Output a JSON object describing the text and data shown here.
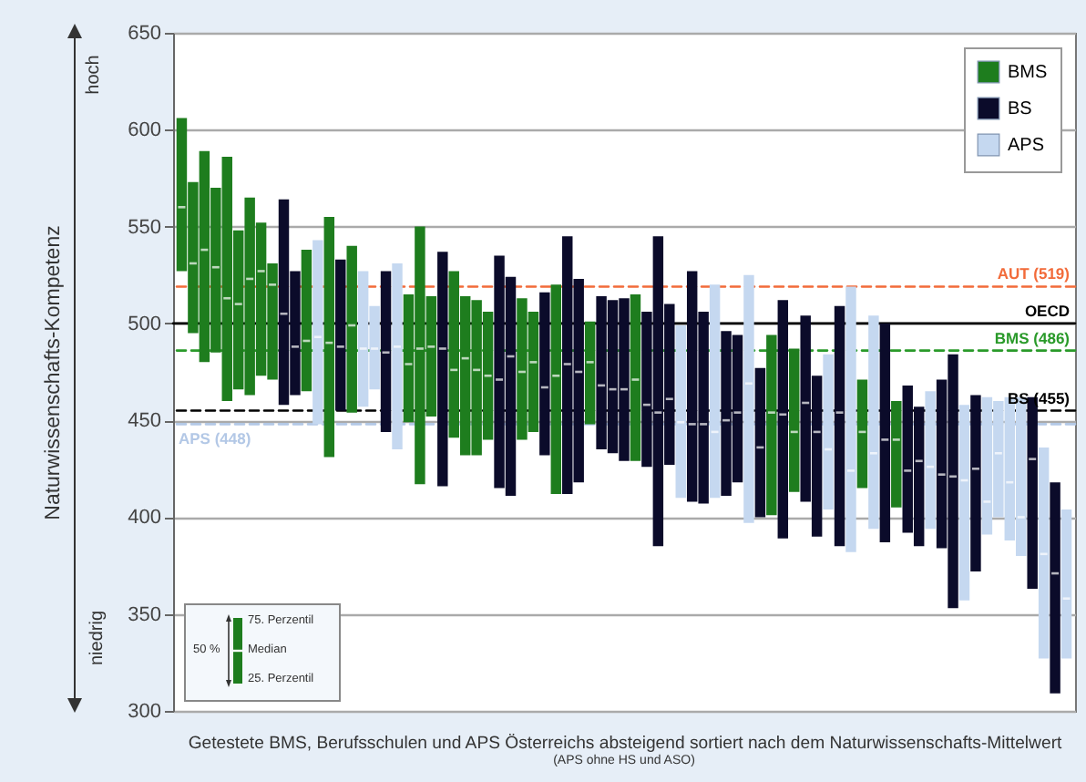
{
  "chart_data": {
    "type": "bar",
    "xlabel": "Getestete BMS, Berufsschulen und APS Österreichs absteigend sortiert nach dem Naturwissenschafts-Mittelwert",
    "ylabel": "Naturwissenschafts-Kompetenz",
    "annotations": [
      "hoch",
      "niedrig",
      "(APS ohne HS und ASO)",
      "75. Perzentil",
      "Median",
      "25. Perzentil",
      "50 %"
    ],
    "categories": [
      null,
      null,
      null,
      null,
      null,
      null,
      null,
      null,
      null,
      null,
      null,
      null,
      null,
      null,
      null,
      null,
      null,
      null,
      null,
      null,
      null,
      null,
      null,
      null,
      null,
      null,
      null,
      null,
      null,
      null,
      null,
      null,
      null,
      null,
      null,
      null,
      null,
      null,
      null,
      null,
      null,
      null,
      null,
      null,
      null,
      null,
      null,
      null,
      null,
      null,
      null,
      null,
      null,
      null,
      null,
      null,
      null,
      null,
      null,
      null,
      null,
      null,
      null,
      null,
      null,
      null,
      null,
      null,
      null,
      null,
      null,
      null,
      null,
      null,
      null,
      null,
      null,
      null,
      null
    ],
    "series": [
      {
        "name": "BMS",
        "color": "#1e7d1e",
        "values": [
          79,
          78,
          109,
          85,
          126,
          82,
          102,
          79,
          60,
          null,
          null,
          73,
          null,
          124,
          null,
          86,
          null,
          null,
          null,
          null,
          66,
          133,
          62,
          null,
          86,
          82,
          80,
          66,
          null,
          null,
          73,
          62,
          null,
          108,
          null,
          null,
          53,
          null,
          null,
          null,
          86,
          null,
          null,
          null,
          null,
          null,
          null,
          null,
          null,
          null,
          null,
          null,
          93,
          null,
          74,
          null,
          null,
          null,
          null,
          null,
          56,
          null,
          null,
          55,
          null,
          null,
          null,
          null,
          null,
          null,
          null,
          null,
          null,
          null,
          null,
          null,
          null,
          null,
          null
        ],
        "base": [
          527,
          495,
          480,
          485,
          460,
          466,
          463,
          473,
          471,
          null,
          null,
          465,
          null,
          431,
          null,
          454,
          null,
          null,
          null,
          null,
          449,
          417,
          452,
          null,
          441,
          432,
          432,
          440,
          null,
          null,
          440,
          444,
          null,
          412,
          null,
          null,
          448,
          null,
          null,
          null,
          429,
          null,
          null,
          null,
          null,
          null,
          null,
          null,
          null,
          null,
          null,
          null,
          401,
          null,
          413,
          null,
          null,
          null,
          null,
          null,
          415,
          null,
          null,
          405,
          null,
          null,
          null,
          null,
          null,
          null,
          null,
          null,
          null,
          null,
          null,
          null,
          null,
          null,
          null
        ]
      },
      {
        "name": "BS",
        "color": "#0b0b2a",
        "values": [
          null,
          null,
          null,
          null,
          null,
          null,
          null,
          null,
          null,
          106,
          64,
          null,
          null,
          null,
          78,
          null,
          null,
          null,
          83,
          null,
          null,
          null,
          null,
          121,
          null,
          null,
          null,
          null,
          120,
          113,
          null,
          null,
          84,
          null,
          133,
          105,
          null,
          79,
          79,
          84,
          null,
          80,
          160,
          83,
          null,
          119,
          99,
          null,
          85,
          76,
          null,
          77,
          null,
          123,
          null,
          96,
          83,
          null,
          124,
          null,
          null,
          null,
          113,
          null,
          76,
          72,
          null,
          87,
          131,
          null,
          91,
          null,
          null,
          null,
          null,
          99,
          null,
          109,
          null
        ],
        "base": [
          null,
          null,
          null,
          null,
          null,
          null,
          null,
          null,
          null,
          458,
          463,
          null,
          null,
          null,
          455,
          null,
          null,
          null,
          444,
          null,
          null,
          null,
          null,
          416,
          null,
          null,
          null,
          null,
          415,
          411,
          null,
          null,
          432,
          null,
          412,
          418,
          null,
          435,
          433,
          429,
          null,
          426,
          385,
          427,
          null,
          408,
          407,
          null,
          411,
          418,
          null,
          400,
          null,
          389,
          null,
          408,
          390,
          null,
          385,
          null,
          null,
          null,
          387,
          null,
          392,
          385,
          null,
          384,
          353,
          null,
          372,
          null,
          null,
          null,
          null,
          363,
          null,
          309,
          null
        ]
      },
      {
        "name": "APS",
        "color": "#c5d8f0",
        "values": [
          null,
          null,
          null,
          null,
          null,
          null,
          null,
          null,
          null,
          null,
          null,
          null,
          95,
          null,
          null,
          null,
          70,
          43,
          null,
          96,
          null,
          null,
          null,
          null,
          null,
          null,
          null,
          null,
          null,
          null,
          null,
          null,
          null,
          null,
          null,
          null,
          null,
          null,
          null,
          null,
          null,
          null,
          null,
          null,
          89,
          null,
          null,
          110,
          null,
          null,
          128,
          null,
          null,
          null,
          null,
          null,
          null,
          80,
          null,
          137,
          null,
          110,
          null,
          null,
          null,
          null,
          71,
          null,
          null,
          101,
          null,
          71,
          60,
          74,
          82,
          null,
          109,
          null,
          77
        ],
        "base": [
          null,
          null,
          null,
          null,
          null,
          null,
          null,
          null,
          null,
          null,
          null,
          null,
          448,
          null,
          null,
          null,
          457,
          466,
          null,
          435,
          null,
          null,
          null,
          null,
          null,
          null,
          null,
          null,
          null,
          null,
          null,
          null,
          null,
          null,
          null,
          null,
          null,
          null,
          null,
          null,
          null,
          null,
          null,
          null,
          410,
          null,
          null,
          410,
          null,
          null,
          397,
          null,
          null,
          null,
          null,
          null,
          null,
          404,
          null,
          382,
          null,
          394,
          null,
          null,
          null,
          null,
          394,
          null,
          null,
          357,
          null,
          391,
          400,
          388,
          380,
          null,
          327,
          null,
          327
        ]
      },
      {
        "type": "scatter",
        "color": "#ffffff",
        "values": [
          560,
          531,
          538,
          529,
          513,
          510,
          523,
          527,
          520,
          505,
          488,
          491,
          493,
          490,
          488,
          499,
          487,
          487,
          485,
          488,
          479,
          487,
          488,
          487,
          476,
          482,
          476,
          473,
          471,
          483,
          475,
          480,
          467,
          473,
          479,
          475,
          480,
          468,
          466,
          466,
          471,
          458,
          454,
          461,
          449,
          448,
          448,
          444,
          450,
          454,
          469,
          436,
          454,
          453,
          444,
          459,
          444,
          435,
          454,
          424,
          444,
          433,
          440,
          440,
          424,
          429,
          426,
          422,
          421,
          419,
          425,
          408,
          433,
          418,
          400,
          430,
          381,
          371,
          358
        ]
      }
    ],
    "ref_lines": [
      {
        "axis": "y",
        "value": 519,
        "label": "AUT (519)",
        "color": "#f26b3a",
        "line_style": "dashed"
      },
      {
        "axis": "y",
        "value": 500,
        "label": "OECD",
        "color": "#000000",
        "line_style": "solid"
      },
      {
        "axis": "y",
        "value": 486,
        "label": "BMS (486)",
        "color": "#2a9a2a",
        "line_style": "dashed"
      },
      {
        "axis": "y",
        "value": 455,
        "label": "BS (455)",
        "color": "#000000",
        "line_style": "dashed"
      },
      {
        "axis": "y",
        "value": 448,
        "label": "APS (448)",
        "color": "#b3c8e6",
        "line_style": "dashed"
      }
    ],
    "ylim": [
      300,
      650
    ],
    "yticks": [
      300,
      350,
      400,
      450,
      500,
      550,
      600,
      650
    ],
    "grid": "y",
    "legend": "top right"
  }
}
